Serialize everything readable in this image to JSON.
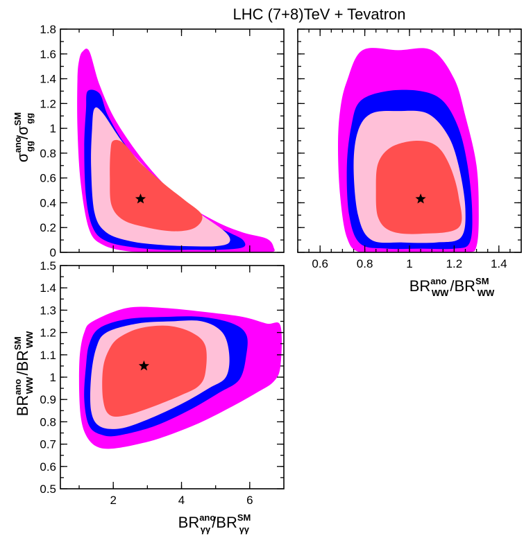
{
  "title": "LHC (7+8)TeV + Tevatron",
  "colors": {
    "outer": "#ff00ff",
    "band2": "#0000ff",
    "band1": "#ffc0d8",
    "inner": "#ff4f4f",
    "frame": "#000000"
  },
  "chart_data": [
    {
      "type": "contour",
      "panel": "top-left",
      "ylabel": {
        "base": "σ",
        "sup": "ano",
        "sub": "gg",
        "sep": "/",
        "base2": "σ",
        "sup2": "SM",
        "sub2": "gg"
      },
      "xlim": [
        0.45,
        7.0
      ],
      "ylim": [
        0,
        1.8
      ],
      "yticks": [
        "0",
        "0.2",
        "0.4",
        "0.6",
        "0.8",
        "1",
        "1.2",
        "1.4",
        "1.6",
        "1.8"
      ],
      "best_fit": [
        2.8,
        0.43
      ],
      "contours": [
        {
          "level": "outer",
          "points": [
            [
              1.1,
              1.62
            ],
            [
              1.3,
              1.62
            ],
            [
              1.6,
              1.35
            ],
            [
              2.1,
              1.05
            ],
            [
              3.0,
              0.7
            ],
            [
              4.0,
              0.42
            ],
            [
              5.0,
              0.25
            ],
            [
              5.8,
              0.16
            ],
            [
              6.5,
              0.11
            ],
            [
              6.7,
              0.04
            ],
            [
              6.6,
              0.0
            ],
            [
              5.5,
              0.0
            ],
            [
              4.5,
              0.0
            ],
            [
              3.4,
              0.0
            ],
            [
              2.4,
              0.01
            ],
            [
              1.7,
              0.06
            ],
            [
              1.3,
              0.18
            ],
            [
              1.05,
              0.55
            ],
            [
              0.95,
              1.0
            ],
            [
              0.95,
              1.4
            ],
            [
              1.0,
              1.55
            ]
          ]
        },
        {
          "level": "band2",
          "points": [
            [
              1.25,
              1.3
            ],
            [
              1.6,
              1.28
            ],
            [
              1.85,
              1.1
            ],
            [
              2.4,
              0.85
            ],
            [
              3.2,
              0.6
            ],
            [
              4.0,
              0.4
            ],
            [
              4.8,
              0.24
            ],
            [
              5.4,
              0.16
            ],
            [
              5.8,
              0.1
            ],
            [
              5.8,
              0.04
            ],
            [
              5.1,
              0.02
            ],
            [
              4.3,
              0.02
            ],
            [
              3.5,
              0.02
            ],
            [
              2.6,
              0.04
            ],
            [
              1.8,
              0.09
            ],
            [
              1.4,
              0.2
            ],
            [
              1.2,
              0.45
            ],
            [
              1.15,
              0.85
            ],
            [
              1.2,
              1.15
            ]
          ]
        },
        {
          "level": "band1",
          "points": [
            [
              1.45,
              1.16
            ],
            [
              1.7,
              1.12
            ],
            [
              2.3,
              0.88
            ],
            [
              3.1,
              0.64
            ],
            [
              3.9,
              0.44
            ],
            [
              4.6,
              0.3
            ],
            [
              5.3,
              0.16
            ],
            [
              5.4,
              0.08
            ],
            [
              5.0,
              0.05
            ],
            [
              4.2,
              0.05
            ],
            [
              3.4,
              0.06
            ],
            [
              2.5,
              0.09
            ],
            [
              1.8,
              0.16
            ],
            [
              1.45,
              0.32
            ],
            [
              1.35,
              0.7
            ],
            [
              1.38,
              1.0
            ]
          ]
        },
        {
          "level": "inner",
          "points": [
            [
              2.0,
              0.9
            ],
            [
              2.3,
              0.88
            ],
            [
              2.8,
              0.72
            ],
            [
              3.5,
              0.55
            ],
            [
              4.1,
              0.42
            ],
            [
              4.6,
              0.3
            ],
            [
              4.4,
              0.2
            ],
            [
              3.8,
              0.17
            ],
            [
              3.0,
              0.2
            ],
            [
              2.3,
              0.26
            ],
            [
              1.95,
              0.38
            ],
            [
              1.9,
              0.6
            ],
            [
              1.92,
              0.82
            ]
          ]
        }
      ]
    },
    {
      "type": "contour",
      "panel": "top-right",
      "xlabel": {
        "base": "BR",
        "sup": "ano",
        "sub": "WW",
        "sep": "/",
        "base2": "BR",
        "sup2": "SM",
        "sub2": "WW"
      },
      "xlim": [
        0.5,
        1.5
      ],
      "ylim": [
        0,
        1.8
      ],
      "xticks": [
        "0.6",
        "0.8",
        "1",
        "1.2",
        "1.4"
      ],
      "best_fit": [
        1.05,
        0.43
      ],
      "contours": [
        {
          "level": "outer",
          "points": [
            [
              0.72,
              1.38
            ],
            [
              0.79,
              1.63
            ],
            [
              0.95,
              1.63
            ],
            [
              1.1,
              1.63
            ],
            [
              1.2,
              1.4
            ],
            [
              1.25,
              1.1
            ],
            [
              1.3,
              0.7
            ],
            [
              1.31,
              0.3
            ],
            [
              1.3,
              0.05
            ],
            [
              1.26,
              0.0
            ],
            [
              1.1,
              0.0
            ],
            [
              0.95,
              0.0
            ],
            [
              0.78,
              0.0
            ],
            [
              0.72,
              0.12
            ],
            [
              0.69,
              0.45
            ],
            [
              0.68,
              0.85
            ],
            [
              0.69,
              1.15
            ]
          ]
        },
        {
          "level": "band2",
          "points": [
            [
              0.74,
              1.02
            ],
            [
              0.78,
              1.22
            ],
            [
              0.9,
              1.3
            ],
            [
              1.05,
              1.3
            ],
            [
              1.15,
              1.22
            ],
            [
              1.22,
              1.0
            ],
            [
              1.26,
              0.7
            ],
            [
              1.28,
              0.35
            ],
            [
              1.27,
              0.08
            ],
            [
              1.2,
              0.03
            ],
            [
              1.05,
              0.03
            ],
            [
              0.9,
              0.03
            ],
            [
              0.78,
              0.07
            ],
            [
              0.73,
              0.3
            ],
            [
              0.72,
              0.7
            ]
          ]
        },
        {
          "level": "band1",
          "points": [
            [
              0.77,
              0.98
            ],
            [
              0.83,
              1.12
            ],
            [
              0.95,
              1.14
            ],
            [
              1.08,
              1.12
            ],
            [
              1.17,
              0.95
            ],
            [
              1.22,
              0.7
            ],
            [
              1.25,
              0.35
            ],
            [
              1.23,
              0.12
            ],
            [
              1.12,
              0.08
            ],
            [
              0.97,
              0.08
            ],
            [
              0.83,
              0.1
            ],
            [
              0.77,
              0.3
            ],
            [
              0.75,
              0.7
            ]
          ]
        },
        {
          "level": "inner",
          "points": [
            [
              0.86,
              0.72
            ],
            [
              0.92,
              0.85
            ],
            [
              1.03,
              0.9
            ],
            [
              1.12,
              0.86
            ],
            [
              1.18,
              0.7
            ],
            [
              1.22,
              0.45
            ],
            [
              1.22,
              0.2
            ],
            [
              1.05,
              0.15
            ],
            [
              0.92,
              0.17
            ],
            [
              0.86,
              0.28
            ],
            [
              0.85,
              0.5
            ]
          ]
        }
      ]
    },
    {
      "type": "contour",
      "panel": "bottom-left",
      "xlabel": {
        "base": "BR",
        "sup": "ano",
        "sub": "γγ",
        "sep": "/",
        "base2": "BR",
        "sup2": "SM",
        "sub2": "γγ"
      },
      "ylabel": {
        "base": "BR",
        "sup": "ano",
        "sub": "WW",
        "sep": "/",
        "base2": "BR",
        "sup2": "SM",
        "sub2": "WW"
      },
      "xlim": [
        0.45,
        7.0
      ],
      "ylim": [
        0.5,
        1.5
      ],
      "xticks": [
        "2",
        "4",
        "6"
      ],
      "yticks": [
        "0.5",
        "0.6",
        "0.7",
        "0.8",
        "0.9",
        "1",
        "1.1",
        "1.2",
        "1.3",
        "1.4",
        "1.5"
      ],
      "best_fit": [
        2.9,
        1.05
      ],
      "contours": [
        {
          "level": "outer",
          "points": [
            [
              1.4,
              1.25
            ],
            [
              2.4,
              1.31
            ],
            [
              3.5,
              1.31
            ],
            [
              4.8,
              1.29
            ],
            [
              5.8,
              1.27
            ],
            [
              6.5,
              1.24
            ],
            [
              6.9,
              1.23
            ],
            [
              6.9,
              1.05
            ],
            [
              6.7,
              0.98
            ],
            [
              6.2,
              0.93
            ],
            [
              5.5,
              0.87
            ],
            [
              4.6,
              0.8
            ],
            [
              3.8,
              0.75
            ],
            [
              3.0,
              0.71
            ],
            [
              2.0,
              0.68
            ],
            [
              1.5,
              0.69
            ],
            [
              1.2,
              0.74
            ],
            [
              1.05,
              0.82
            ],
            [
              1.0,
              0.95
            ],
            [
              1.02,
              1.1
            ],
            [
              1.15,
              1.2
            ]
          ]
        },
        {
          "level": "band2",
          "points": [
            [
              1.6,
              1.22
            ],
            [
              2.4,
              1.26
            ],
            [
              3.5,
              1.27
            ],
            [
              4.6,
              1.27
            ],
            [
              5.5,
              1.24
            ],
            [
              5.9,
              1.19
            ],
            [
              5.9,
              1.1
            ],
            [
              5.7,
              0.99
            ],
            [
              5.1,
              0.93
            ],
            [
              4.2,
              0.85
            ],
            [
              3.2,
              0.78
            ],
            [
              2.2,
              0.74
            ],
            [
              1.7,
              0.74
            ],
            [
              1.3,
              0.78
            ],
            [
              1.15,
              0.9
            ],
            [
              1.2,
              1.05
            ],
            [
              1.3,
              1.15
            ]
          ]
        },
        {
          "level": "band1",
          "points": [
            [
              1.8,
              1.2
            ],
            [
              2.7,
              1.24
            ],
            [
              3.7,
              1.25
            ],
            [
              4.6,
              1.25
            ],
            [
              5.2,
              1.2
            ],
            [
              5.4,
              1.1
            ],
            [
              5.3,
              1.0
            ],
            [
              4.8,
              0.95
            ],
            [
              4.0,
              0.88
            ],
            [
              3.0,
              0.81
            ],
            [
              2.2,
              0.77
            ],
            [
              1.6,
              0.78
            ],
            [
              1.35,
              0.85
            ],
            [
              1.35,
              1.0
            ],
            [
              1.5,
              1.13
            ]
          ]
        },
        {
          "level": "inner",
          "points": [
            [
              2.2,
              1.18
            ],
            [
              2.8,
              1.22
            ],
            [
              3.6,
              1.23
            ],
            [
              4.3,
              1.2
            ],
            [
              4.7,
              1.14
            ],
            [
              4.7,
              1.02
            ],
            [
              4.5,
              0.96
            ],
            [
              4.0,
              0.92
            ],
            [
              3.2,
              0.87
            ],
            [
              2.4,
              0.83
            ],
            [
              1.9,
              0.83
            ],
            [
              1.7,
              0.9
            ],
            [
              1.7,
              1.04
            ],
            [
              1.9,
              1.13
            ]
          ]
        }
      ]
    }
  ]
}
